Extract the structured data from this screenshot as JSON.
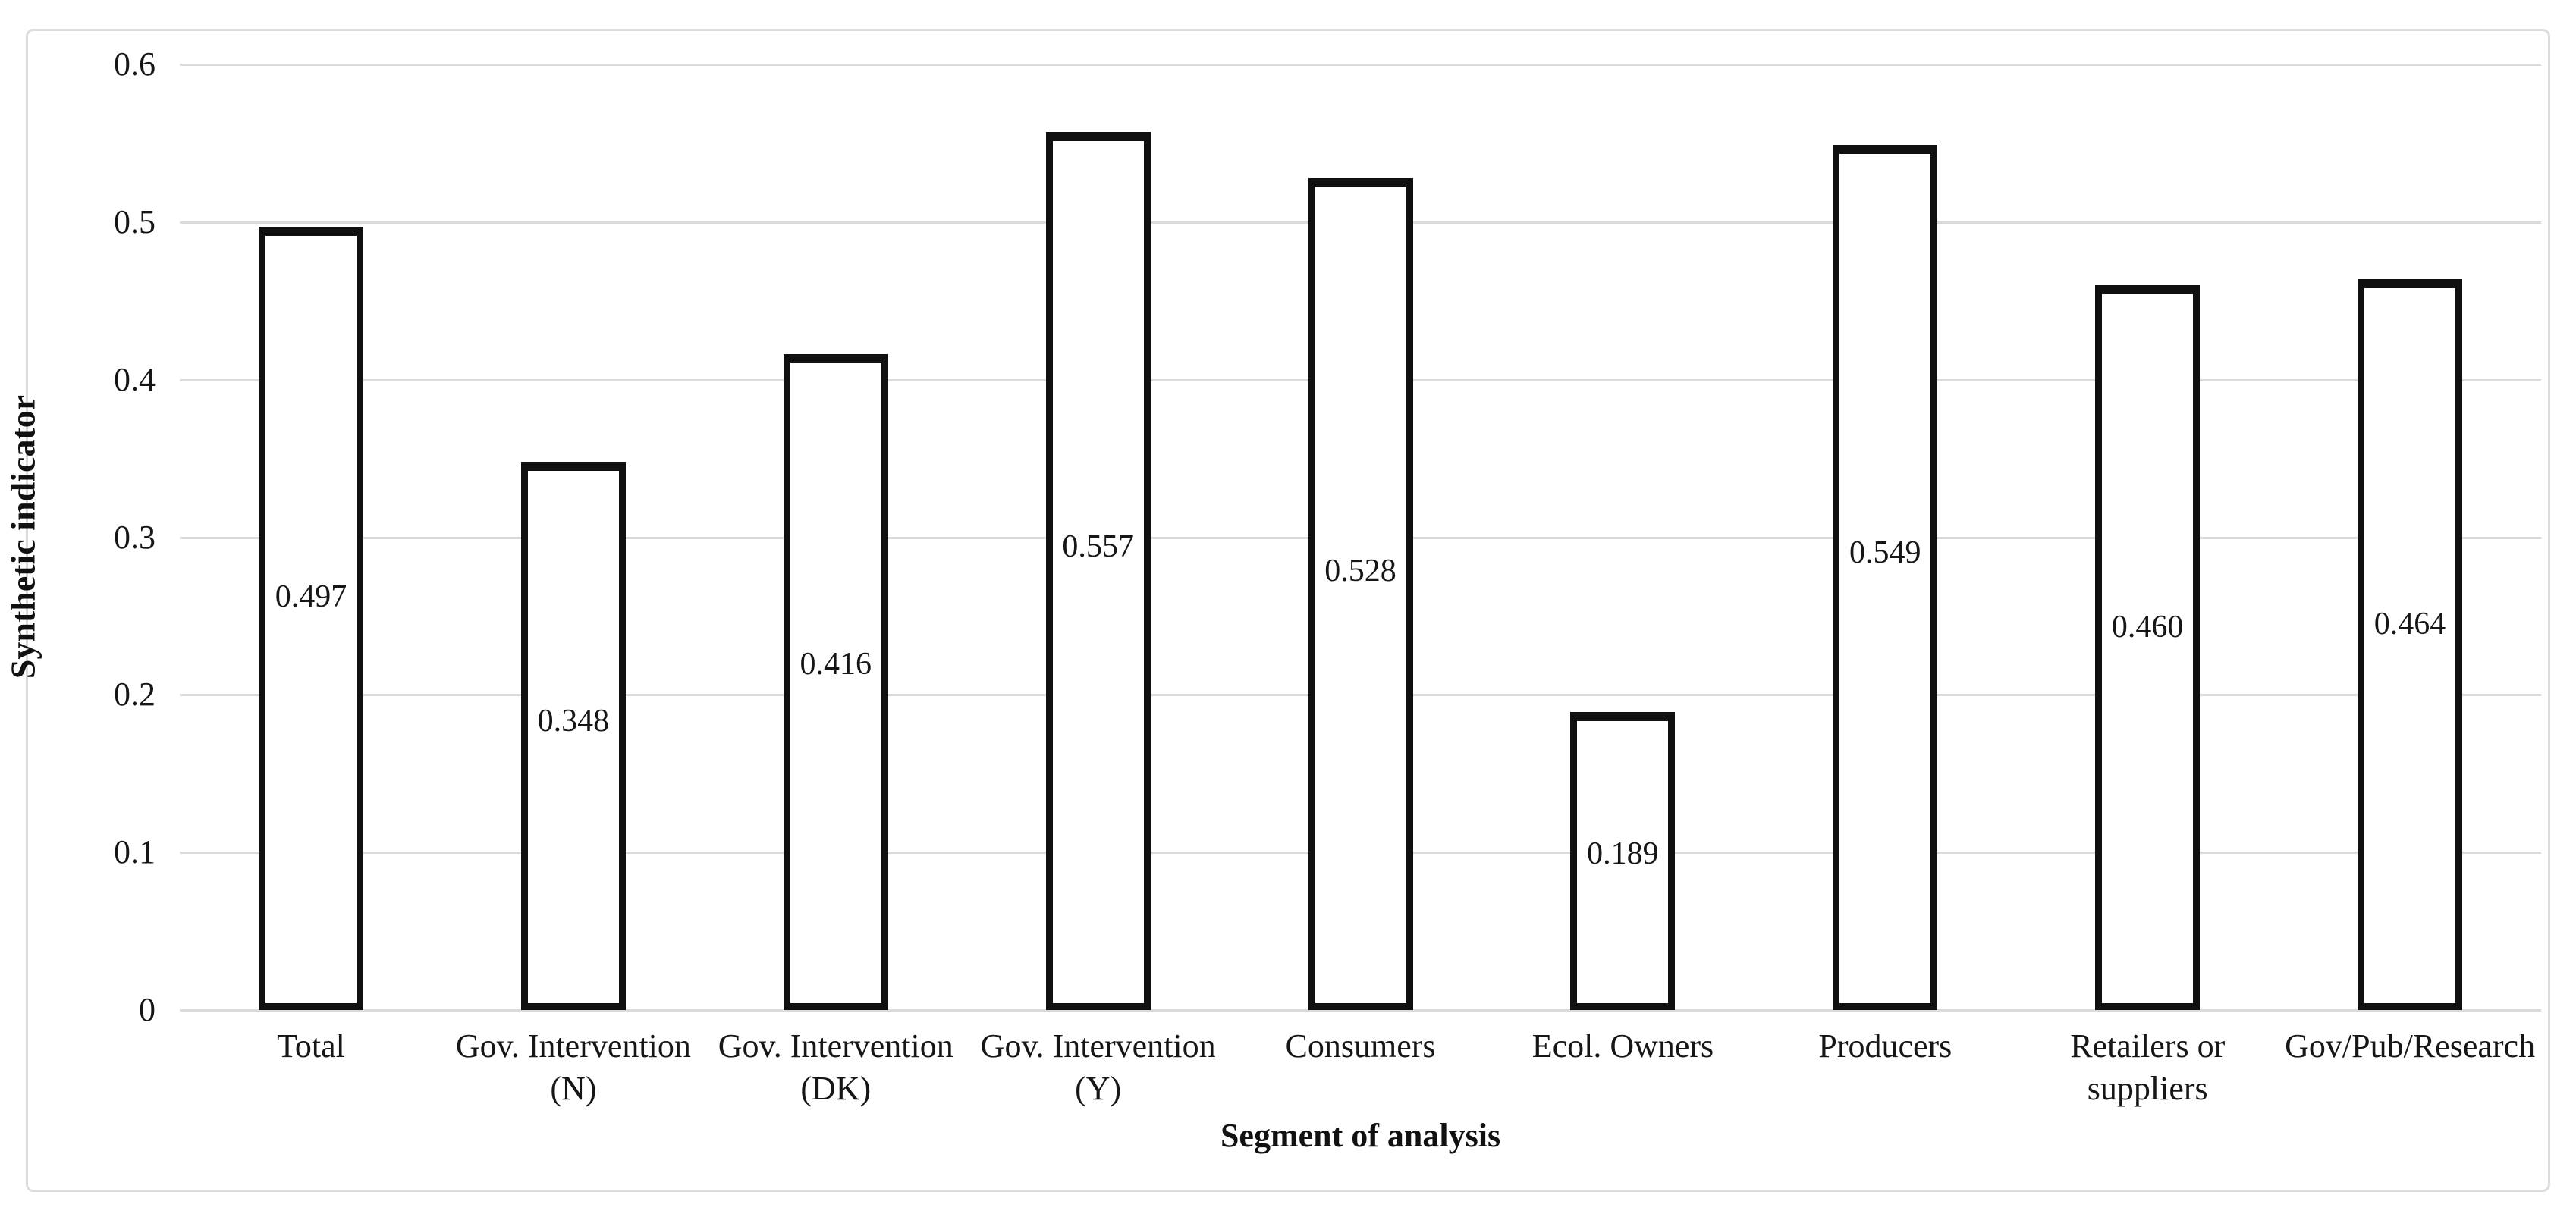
{
  "figure": {
    "background_color": "#ffffff",
    "frame_color": "#dcdcdc"
  },
  "chart_data": {
    "type": "bar",
    "title": "",
    "xlabel": "Segment of analysis",
    "ylabel": "Synthetic indicator",
    "categories": [
      "Total",
      "Gov. Intervention (N)",
      "Gov. Intervention (DK)",
      "Gov. Intervention (Y)",
      "Consumers",
      "Ecol. Owners",
      "Producers",
      "Retailers or suppliers",
      "Gov/Pub/Research"
    ],
    "values": [
      0.497,
      0.348,
      0.416,
      0.557,
      0.528,
      0.189,
      0.549,
      0.46,
      0.464
    ],
    "value_labels": [
      "0.497",
      "0.348",
      "0.416",
      "0.557",
      "0.528",
      "0.189",
      "0.549",
      "0.460",
      "0.464"
    ],
    "ylim": [
      0,
      0.6
    ],
    "yticks": [
      {
        "value": 0,
        "label": "0"
      },
      {
        "value": 0.1,
        "label": "0.1"
      },
      {
        "value": 0.2,
        "label": "0.2"
      },
      {
        "value": 0.3,
        "label": "0.3"
      },
      {
        "value": 0.4,
        "label": "0.4"
      },
      {
        "value": 0.5,
        "label": "0.5"
      },
      {
        "value": 0.6,
        "label": "0.6"
      }
    ],
    "grid": "horizontal",
    "legend": "none",
    "bar_fill_color": "#ffffff",
    "bar_border_color": "#101010",
    "gridline_color": "#dadada"
  }
}
